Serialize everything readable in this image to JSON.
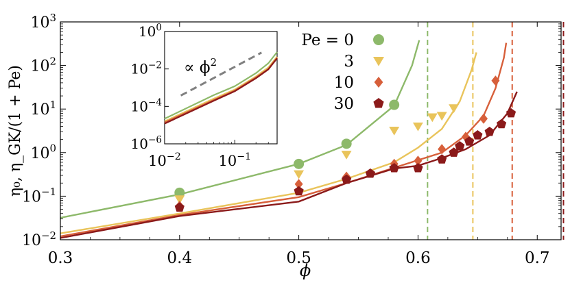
{
  "chart_data": [
    {
      "type": "line",
      "role": "main",
      "xlabel": "ϕ",
      "ylabel": "η₀,  η_GK/(1 + Pe)",
      "xlim": [
        0.3,
        0.72
      ],
      "ylim": [
        0.01,
        1000
      ],
      "y_scale": "log",
      "x_ticks": [
        0.3,
        0.4,
        0.5,
        0.6,
        0.7
      ],
      "x_tick_labels": [
        "0.3",
        "0.4",
        "0.5",
        "0.6",
        "0.7"
      ],
      "y_ticks": [
        0.01,
        0.1,
        1,
        10,
        100,
        1000
      ],
      "y_tick_labels": [
        {
          "base": "10",
          "exp": "−2"
        },
        {
          "base": "10",
          "exp": "−1"
        },
        {
          "base": "10",
          "exp": "0"
        },
        {
          "base": "10",
          "exp": "1"
        },
        {
          "base": "10",
          "exp": "2"
        },
        {
          "base": "10",
          "exp": "3"
        }
      ],
      "legend": {
        "placement": "top-right",
        "entries": [
          {
            "label": "Pe = 0",
            "color": "#8db96a",
            "marker": "circle"
          },
          {
            "label": "3",
            "color": "#e9c45b",
            "marker": "triangle-down"
          },
          {
            "label": "10",
            "color": "#d75f3a",
            "marker": "diamond"
          },
          {
            "label": "30",
            "color": "#8b1a1a",
            "marker": "pentagon"
          }
        ]
      },
      "series": [
        {
          "name": "Pe = 0",
          "color": "#8db96a",
          "marker": "circle",
          "line": [
            [
              0.3,
              0.032
            ],
            [
              0.4,
              0.11
            ],
            [
              0.5,
              0.55
            ],
            [
              0.54,
              1.5
            ],
            [
              0.58,
              12
            ],
            [
              0.595,
              100
            ],
            [
              0.601,
              380
            ]
          ],
          "points": [
            [
              0.4,
              0.12
            ],
            [
              0.5,
              0.55
            ],
            [
              0.54,
              1.6
            ],
            [
              0.58,
              12.5
            ]
          ],
          "jamming": 0.608
        },
        {
          "name": "3",
          "color": "#e9c45b",
          "marker": "triangle-down",
          "line": [
            [
              0.3,
              0.014
            ],
            [
              0.4,
              0.04
            ],
            [
              0.5,
              0.12
            ],
            [
              0.54,
              0.25
            ],
            [
              0.58,
              0.6
            ],
            [
              0.6,
              1.3
            ],
            [
              0.62,
              3.5
            ],
            [
              0.635,
              15
            ],
            [
              0.645,
              80
            ],
            [
              0.649,
              200
            ]
          ],
          "points": [
            [
              0.4,
              0.085
            ],
            [
              0.5,
              0.32
            ],
            [
              0.54,
              0.9
            ],
            [
              0.58,
              3.2
            ],
            [
              0.6,
              4.0
            ],
            [
              0.612,
              6.5
            ],
            [
              0.62,
              7
            ],
            [
              0.63,
              10.5
            ]
          ],
          "jamming": 0.646
        },
        {
          "name": "10",
          "color": "#d75f3a",
          "marker": "diamond",
          "line": [
            [
              0.3,
              0.012
            ],
            [
              0.4,
              0.037
            ],
            [
              0.5,
              0.095
            ],
            [
              0.54,
              0.2
            ],
            [
              0.58,
              0.45
            ],
            [
              0.62,
              1
            ],
            [
              0.64,
              2.5
            ],
            [
              0.655,
              7
            ],
            [
              0.665,
              30
            ],
            [
              0.672,
              150
            ],
            [
              0.674,
              330
            ]
          ],
          "points": [
            [
              0.4,
              0.06
            ],
            [
              0.5,
              0.19
            ],
            [
              0.54,
              0.28
            ],
            [
              0.58,
              0.55
            ],
            [
              0.6,
              0.65
            ],
            [
              0.62,
              1.2
            ],
            [
              0.64,
              2.3
            ],
            [
              0.655,
              6
            ],
            [
              0.665,
              45
            ]
          ],
          "jamming": 0.679
        },
        {
          "name": "30",
          "color": "#8b1a1a",
          "marker": "pentagon",
          "line": [
            [
              0.3,
              0.011
            ],
            [
              0.4,
              0.035
            ],
            [
              0.5,
              0.075
            ],
            [
              0.54,
              0.2
            ],
            [
              0.58,
              0.43
            ],
            [
              0.6,
              0.5
            ],
            [
              0.62,
              0.75
            ],
            [
              0.64,
              1.2
            ],
            [
              0.66,
              2.5
            ],
            [
              0.675,
              8
            ],
            [
              0.683,
              25
            ]
          ],
          "points": [
            [
              0.4,
              0.055
            ],
            [
              0.5,
              0.13
            ],
            [
              0.54,
              0.24
            ],
            [
              0.56,
              0.33
            ],
            [
              0.58,
              0.44
            ],
            [
              0.6,
              0.44
            ],
            [
              0.62,
              0.7
            ],
            [
              0.63,
              1.0
            ],
            [
              0.635,
              1.4
            ],
            [
              0.643,
              1.8
            ],
            [
              0.65,
              2.5
            ],
            [
              0.66,
              3.0
            ],
            [
              0.67,
              4.5
            ],
            [
              0.678,
              8
            ]
          ],
          "jamming": 0.722
        }
      ]
    },
    {
      "type": "line",
      "role": "inset",
      "x_scale": "log",
      "y_scale": "log",
      "xlim": [
        0.01,
        0.4
      ],
      "ylim": [
        1e-06,
        1
      ],
      "x_ticks": [
        0.01,
        0.1
      ],
      "x_tick_labels": [
        {
          "base": "10",
          "exp": "−2"
        },
        {
          "base": "10",
          "exp": "−1"
        }
      ],
      "y_ticks": [
        1e-06,
        0.0001,
        0.01,
        1
      ],
      "y_tick_labels": [
        {
          "base": "10",
          "exp": "−6"
        },
        {
          "base": "10",
          "exp": "−4"
        },
        {
          "base": "10",
          "exp": "−2"
        },
        {
          "base": "10",
          "exp": "0"
        }
      ],
      "annotation": {
        "prefix": "∝ ϕ",
        "exp": "2"
      },
      "guide": {
        "color": "#808080",
        "points": [
          [
            0.017,
            0.00038
          ],
          [
            0.24,
            0.075
          ]
        ]
      },
      "series": [
        {
          "color": "#8db96a",
          "line": [
            [
              0.01,
              2.2e-05
            ],
            [
              0.05,
              0.0004
            ],
            [
              0.1,
              0.0012
            ],
            [
              0.2,
              0.006
            ],
            [
              0.3,
              0.02
            ],
            [
              0.4,
              0.08
            ]
          ]
        },
        {
          "color": "#e9c45b",
          "line": [
            [
              0.01,
              1.6e-05
            ],
            [
              0.05,
              0.00026
            ],
            [
              0.1,
              0.0008
            ],
            [
              0.2,
              0.004
            ],
            [
              0.3,
              0.012
            ],
            [
              0.4,
              0.045
            ]
          ]
        },
        {
          "color": "#d75f3a",
          "line": [
            [
              0.01,
              1.4e-05
            ],
            [
              0.05,
              0.00022
            ],
            [
              0.1,
              0.0007
            ],
            [
              0.2,
              0.0035
            ],
            [
              0.3,
              0.01
            ],
            [
              0.4,
              0.04
            ]
          ]
        },
        {
          "color": "#8b1a1a",
          "line": [
            [
              0.01,
              1.2e-05
            ],
            [
              0.05,
              0.0002
            ],
            [
              0.1,
              0.00065
            ],
            [
              0.2,
              0.0032
            ],
            [
              0.3,
              0.0095
            ],
            [
              0.4,
              0.037
            ]
          ]
        }
      ]
    }
  ]
}
